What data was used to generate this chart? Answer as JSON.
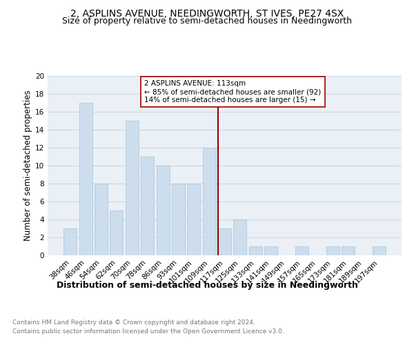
{
  "title": "2, ASPLINS AVENUE, NEEDINGWORTH, ST IVES, PE27 4SX",
  "subtitle": "Size of property relative to semi-detached houses in Needingworth",
  "xlabel": "Distribution of semi-detached houses by size in Needingworth",
  "ylabel": "Number of semi-detached properties",
  "footnote1": "Contains HM Land Registry data © Crown copyright and database right 2024.",
  "footnote2": "Contains public sector information licensed under the Open Government Licence v3.0.",
  "bar_labels": [
    "38sqm",
    "46sqm",
    "54sqm",
    "62sqm",
    "70sqm",
    "78sqm",
    "86sqm",
    "93sqm",
    "101sqm",
    "109sqm",
    "117sqm",
    "125sqm",
    "133sqm",
    "141sqm",
    "149sqm",
    "157sqm",
    "165sqm",
    "173sqm",
    "181sqm",
    "189sqm",
    "197sqm"
  ],
  "bar_values": [
    3,
    17,
    8,
    5,
    15,
    11,
    10,
    8,
    8,
    12,
    3,
    4,
    1,
    1,
    0,
    1,
    0,
    1,
    1,
    0,
    1
  ],
  "bar_color": "#ccdded",
  "bar_edgecolor": "#aac4d8",
  "vline_color": "#990000",
  "annotation_box_color": "#990000",
  "ylim": [
    0,
    20
  ],
  "yticks": [
    0,
    2,
    4,
    6,
    8,
    10,
    12,
    14,
    16,
    18,
    20
  ],
  "grid_color": "#ccd8e4",
  "background_color": "#eaf0f6",
  "title_fontsize": 10,
  "subtitle_fontsize": 9,
  "xlabel_fontsize": 9,
  "ylabel_fontsize": 8.5,
  "tick_fontsize": 7.5,
  "annotation_fontsize": 7.5,
  "footnote_fontsize": 6.5,
  "annotation_title": "2 ASPLINS AVENUE: 113sqm",
  "annotation_line1": "← 85% of semi-detached houses are smaller (92)",
  "annotation_line2": "14% of semi-detached houses are larger (15) →"
}
